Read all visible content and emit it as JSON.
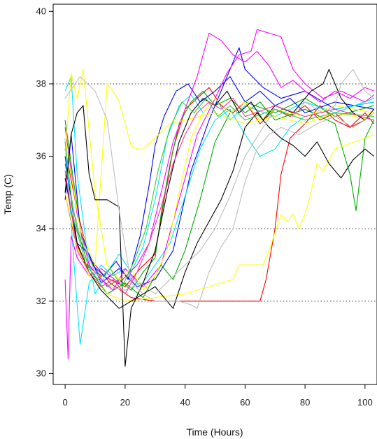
{
  "chart_data": {
    "type": "line",
    "title": "",
    "xlabel": "Time (Hours)",
    "ylabel": "Temp (C)",
    "xlim": [
      -4,
      104
    ],
    "ylim": [
      29.7,
      40.2
    ],
    "x_ticks": [
      0,
      20,
      40,
      60,
      80,
      100
    ],
    "y_ticks": [
      30,
      32,
      34,
      36,
      38,
      40
    ],
    "grid": {
      "horizontal_dotted_at": [
        32,
        34,
        38
      ]
    },
    "legend": "none",
    "colors": [
      "#ff0000",
      "#00aa00",
      "#0000ff",
      "#00e5ff",
      "#ff00ff",
      "#ffff00",
      "#000000",
      "#bdbdbd",
      "#33cc33",
      "#ff3399"
    ],
    "series": [
      {
        "color": "#ff0000",
        "x": [
          0,
          3,
          6,
          10,
          15,
          20,
          25,
          30,
          33,
          36,
          40,
          44,
          48,
          52,
          56,
          60,
          65,
          70,
          75,
          80,
          85,
          90,
          95,
          100
        ],
        "y": [
          35.0,
          33.8,
          33.1,
          32.8,
          32.6,
          32.4,
          32.9,
          33.3,
          34.8,
          36.2,
          37.3,
          37.6,
          37.9,
          37.4,
          37.2,
          37.5,
          36.9,
          37.3,
          37.1,
          37.4,
          37.0,
          37.2,
          36.8,
          37.0
        ]
      },
      {
        "color": "#ff0000",
        "x": [
          0,
          4,
          8,
          15,
          22,
          30,
          40,
          50,
          60,
          65,
          67,
          70,
          72,
          75,
          80,
          82,
          85,
          90,
          95,
          100,
          103
        ],
        "y": [
          36.2,
          34.5,
          33.2,
          32.5,
          32.1,
          32.0,
          32.0,
          32.0,
          32.0,
          32.0,
          32.6,
          34.0,
          35.5,
          36.5,
          36.9,
          37.1,
          37.4,
          37.0,
          36.8,
          37.2,
          36.9
        ]
      },
      {
        "color": "#00aa00",
        "x": [
          0,
          3,
          6,
          10,
          14,
          18,
          22,
          26,
          30,
          32,
          35,
          38,
          42,
          46,
          50,
          55,
          60,
          65,
          70,
          80,
          90,
          95,
          97,
          100,
          103
        ],
        "y": [
          37.0,
          35.2,
          33.5,
          32.9,
          32.4,
          32.6,
          32.3,
          32.8,
          33.2,
          34.4,
          35.8,
          36.9,
          37.5,
          37.8,
          37.4,
          37.6,
          37.2,
          37.5,
          37.0,
          37.3,
          36.9,
          35.5,
          34.5,
          36.5,
          37.0
        ]
      },
      {
        "color": "#00aa00",
        "x": [
          0,
          4,
          8,
          14,
          20,
          26,
          32,
          36,
          40,
          45,
          50,
          55,
          60,
          70,
          80,
          90,
          103
        ],
        "y": [
          35.8,
          34.0,
          32.9,
          32.2,
          32.5,
          32.1,
          33.0,
          32.6,
          33.4,
          34.8,
          36.4,
          37.2,
          37.5,
          37.2,
          37.6,
          37.1,
          37.4
        ]
      },
      {
        "color": "#0000ff",
        "x": [
          0,
          2,
          5,
          9,
          13,
          17,
          21,
          25,
          28,
          30,
          33,
          37,
          41,
          45,
          50,
          55,
          60,
          65,
          70,
          75,
          80,
          90,
          103
        ],
        "y": [
          34.8,
          36.6,
          34.0,
          33.0,
          32.7,
          33.1,
          32.6,
          33.8,
          35.2,
          36.3,
          37.1,
          37.8,
          38.0,
          37.5,
          37.8,
          38.2,
          37.5,
          37.8,
          37.4,
          37.6,
          37.2,
          37.5,
          37.3
        ]
      },
      {
        "color": "#0000ff",
        "x": [
          0,
          4,
          8,
          12,
          18,
          24,
          30,
          36,
          42,
          48,
          54,
          58,
          60,
          66,
          72,
          80,
          90,
          103
        ],
        "y": [
          36.0,
          33.6,
          33.3,
          32.5,
          32.9,
          32.4,
          32.6,
          33.4,
          35.6,
          37.0,
          38.2,
          39.0,
          38.4,
          37.9,
          37.6,
          37.8,
          37.3,
          37.5
        ]
      },
      {
        "color": "#00e5ff",
        "x": [
          0,
          2,
          4,
          7,
          10,
          14,
          18,
          22,
          26,
          30,
          34,
          38,
          42,
          46,
          50,
          55,
          60,
          70,
          80,
          90,
          103
        ],
        "y": [
          37.8,
          38.2,
          35.5,
          33.6,
          32.2,
          32.8,
          33.3,
          32.8,
          33.5,
          34.8,
          36.5,
          37.4,
          37.7,
          37.2,
          37.6,
          37.0,
          37.4,
          37.1,
          37.5,
          37.2,
          37.6
        ]
      },
      {
        "color": "#00e5ff",
        "x": [
          0,
          3,
          5,
          8,
          12,
          16,
          20,
          25,
          30,
          35,
          40,
          45,
          50,
          55,
          60,
          65,
          70,
          75,
          80,
          90,
          103
        ],
        "y": [
          36.5,
          33.0,
          30.8,
          32.5,
          33.0,
          32.7,
          32.9,
          32.4,
          33.0,
          33.6,
          34.9,
          36.2,
          37.0,
          37.3,
          36.6,
          36.0,
          36.2,
          36.8,
          37.1,
          37.3,
          37.5
        ]
      },
      {
        "color": "#ff00ff",
        "x": [
          0,
          1,
          2,
          4,
          8,
          12,
          18,
          24,
          28,
          32,
          36,
          40,
          44,
          48,
          52,
          56,
          60,
          64,
          68,
          72,
          76,
          80,
          85,
          90,
          95,
          100,
          103
        ],
        "y": [
          32.6,
          30.4,
          33.8,
          33.2,
          32.7,
          32.9,
          32.5,
          33.0,
          33.6,
          35.0,
          36.4,
          37.3,
          38.2,
          39.4,
          39.2,
          38.8,
          38.6,
          38.9,
          38.5,
          37.9,
          38.1,
          37.8,
          37.5,
          37.8,
          37.6,
          37.9,
          37.8
        ]
      },
      {
        "color": "#ff00ff",
        "x": [
          0,
          4,
          8,
          12,
          16,
          20,
          26,
          32,
          38,
          44,
          50,
          54,
          58,
          62,
          64,
          68,
          72,
          76,
          80,
          86,
          92,
          100,
          103
        ],
        "y": [
          36.8,
          34.4,
          33.0,
          32.6,
          32.3,
          32.9,
          32.4,
          33.0,
          34.8,
          36.6,
          37.6,
          38.3,
          38.8,
          38.9,
          39.5,
          39.4,
          39.3,
          38.4,
          38.0,
          37.6,
          37.8,
          37.5,
          37.7
        ]
      },
      {
        "color": "#ffff00",
        "x": [
          0,
          2,
          4,
          6,
          10,
          14,
          18,
          22,
          26,
          30,
          34,
          38,
          42,
          46,
          50,
          55,
          60,
          65,
          70,
          80,
          90,
          103
        ],
        "y": [
          36.0,
          38.3,
          37.6,
          38.4,
          35.0,
          33.0,
          32.6,
          32.9,
          32.3,
          32.7,
          33.4,
          35.0,
          36.5,
          37.2,
          37.6,
          37.2,
          37.5,
          37.0,
          37.3,
          37.1,
          37.4,
          37.2
        ]
      },
      {
        "color": "#ffff00",
        "x": [
          0,
          4,
          8,
          14,
          20,
          30,
          40,
          48,
          52,
          56,
          58,
          60,
          64,
          66,
          68,
          70,
          72,
          74,
          76,
          78,
          80,
          82,
          84,
          86,
          90,
          103
        ],
        "y": [
          35.0,
          33.5,
          32.7,
          32.2,
          32.0,
          32.1,
          32.2,
          32.4,
          32.5,
          32.6,
          33.0,
          33.0,
          33.0,
          33.0,
          33.4,
          33.9,
          34.4,
          34.2,
          34.4,
          34.0,
          34.4,
          35.0,
          35.8,
          35.6,
          36.2,
          36.6
        ]
      },
      {
        "color": "#ffff00",
        "x": [
          0,
          5,
          10,
          14,
          16,
          18,
          20,
          22,
          24,
          26,
          30,
          35,
          40,
          50,
          60,
          70,
          80,
          90,
          103
        ],
        "y": [
          36.5,
          34.0,
          33.0,
          38.0,
          37.8,
          37.5,
          36.9,
          36.3,
          36.2,
          36.2,
          36.5,
          36.9,
          37.0,
          37.2,
          36.9,
          37.1,
          36.9,
          37.2,
          37.0
        ]
      },
      {
        "color": "#000000",
        "x": [
          0,
          2,
          4,
          6,
          8,
          10,
          14,
          18,
          20,
          22,
          26,
          30,
          34,
          38,
          42,
          46,
          50,
          54,
          58,
          62,
          66,
          70,
          76,
          82,
          86,
          88,
          92,
          96,
          100,
          103
        ],
        "y": [
          35.0,
          36.6,
          37.2,
          37.4,
          35.5,
          34.8,
          34.8,
          34.6,
          30.2,
          31.8,
          32.5,
          33.4,
          35.0,
          36.4,
          37.2,
          37.6,
          37.4,
          37.8,
          37.2,
          37.5,
          37.0,
          37.4,
          37.2,
          37.8,
          38.0,
          38.4,
          37.6,
          37.2,
          37.0,
          37.3
        ]
      },
      {
        "color": "#000000",
        "x": [
          0,
          4,
          8,
          12,
          18,
          24,
          30,
          36,
          40,
          44,
          48,
          52,
          56,
          60,
          64,
          68,
          72,
          76,
          80,
          84,
          88,
          92,
          96,
          100,
          103
        ],
        "y": [
          35.4,
          33.6,
          32.8,
          32.3,
          31.8,
          32.1,
          32.4,
          31.8,
          32.8,
          33.6,
          34.2,
          34.8,
          35.6,
          36.8,
          37.2,
          36.8,
          36.5,
          36.3,
          36.0,
          36.4,
          35.8,
          35.4,
          35.9,
          36.2,
          36.0
        ]
      },
      {
        "color": "#bdbdbd",
        "x": [
          0,
          5,
          10,
          14,
          18,
          22,
          26,
          30,
          34,
          38,
          42,
          44,
          48,
          52,
          56,
          60,
          64,
          68,
          72,
          78,
          84,
          90,
          96,
          100,
          103
        ],
        "y": [
          37.6,
          38.2,
          37.8,
          37.0,
          34.5,
          32.5,
          32.2,
          32.0,
          32.0,
          32.0,
          31.9,
          31.8,
          32.8,
          33.5,
          34.0,
          35.3,
          36.2,
          36.6,
          36.8,
          36.6,
          36.9,
          37.1,
          36.8,
          37.0,
          37.2
        ]
      },
      {
        "color": "#bdbdbd",
        "x": [
          0,
          5,
          10,
          15,
          20,
          25,
          30,
          35,
          40,
          45,
          50,
          55,
          60,
          66,
          70,
          76,
          80,
          86,
          90,
          92,
          96,
          100,
          103
        ],
        "y": [
          35.5,
          33.8,
          32.8,
          32.4,
          32.3,
          32.5,
          32.2,
          32.6,
          33.0,
          33.4,
          34.0,
          34.9,
          36.0,
          36.8,
          37.3,
          37.1,
          37.5,
          37.2,
          37.4,
          38.0,
          38.4,
          37.8,
          37.6
        ]
      },
      {
        "color": "#33cc33",
        "x": [
          0,
          3,
          7,
          11,
          15,
          19,
          23,
          27,
          31,
          35,
          39,
          43,
          47,
          51,
          55,
          60,
          70,
          80,
          90,
          103
        ],
        "y": [
          36.4,
          34.2,
          33.0,
          32.6,
          32.9,
          32.4,
          33.1,
          34.0,
          35.6,
          36.8,
          37.5,
          37.2,
          37.6,
          37.1,
          37.4,
          37.0,
          37.3,
          37.0,
          37.2,
          37.1
        ]
      },
      {
        "color": "#ff3399",
        "x": [
          0,
          4,
          8,
          12,
          16,
          20,
          24,
          28,
          32,
          36,
          40,
          44,
          48,
          52,
          56,
          60,
          70,
          80,
          90,
          103
        ],
        "y": [
          35.6,
          33.4,
          32.8,
          32.4,
          32.6,
          32.2,
          32.8,
          33.6,
          34.6,
          35.8,
          36.6,
          37.2,
          37.5,
          37.3,
          37.6,
          37.1,
          37.4,
          37.1,
          37.3,
          37.0
        ]
      }
    ]
  }
}
